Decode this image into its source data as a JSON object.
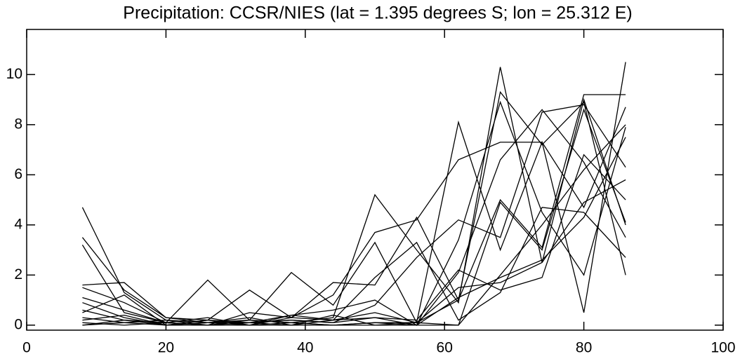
{
  "chart_data": {
    "type": "line",
    "title": "Precipitation: CCSR/NIES (lat = 1.395 degrees S; lon = 25.312 E)",
    "x": [
      8,
      14,
      20,
      26,
      32,
      38,
      44,
      50,
      56,
      62,
      68,
      74,
      80,
      86
    ],
    "xlim": [
      0,
      100
    ],
    "xticks": [
      0,
      20,
      40,
      60,
      80,
      100
    ],
    "ylim": [
      -0.2,
      11.8
    ],
    "yticks": [
      0,
      2,
      4,
      6,
      8,
      10
    ],
    "series": [
      {
        "color": "#000000",
        "values": [
          4.7,
          1.3,
          0.2,
          0,
          0.1,
          0,
          0.2,
          0.5,
          0.1,
          1.0,
          9.3,
          7.2,
          8.9,
          2.0
        ]
      },
      {
        "color": "#000000",
        "values": [
          3.5,
          1.4,
          0.3,
          0.1,
          0.2,
          0.1,
          0.3,
          5.2,
          3.0,
          0.9,
          10.3,
          2.5,
          9.0,
          4.0
        ]
      },
      {
        "color": "#000000",
        "values": [
          3.2,
          0.5,
          0.1,
          1.8,
          0.2,
          2.1,
          0.8,
          3.3,
          0.1,
          8.1,
          3.0,
          7.3,
          0.5,
          10.5
        ]
      },
      {
        "color": "#000000",
        "values": [
          1.6,
          1.7,
          0.3,
          0.2,
          1.4,
          0.3,
          1.7,
          1.6,
          4.3,
          1.0,
          5.0,
          3.1,
          9.2,
          9.2
        ]
      },
      {
        "color": "#000000",
        "values": [
          1.5,
          0.9,
          0.1,
          0,
          0.5,
          0.3,
          1.2,
          3.7,
          4.2,
          6.6,
          7.3,
          7.3,
          4.7,
          8.7
        ]
      },
      {
        "color": "#000000",
        "values": [
          1.1,
          0.6,
          0.1,
          0.3,
          0,
          0.4,
          0.6,
          1.0,
          0,
          3.4,
          8.9,
          4.5,
          2.0,
          7.9
        ]
      },
      {
        "color": "#000000",
        "values": [
          0.9,
          0.3,
          0,
          0.1,
          0.1,
          0.2,
          0.1,
          0.8,
          2.7,
          4.2,
          3.5,
          8.5,
          8.8,
          6.3
        ]
      },
      {
        "color": "#000000",
        "values": [
          0.6,
          0.2,
          0.1,
          0,
          0.2,
          0.1,
          0,
          0.1,
          0,
          2.1,
          6.6,
          8.6,
          6.5,
          3.5
        ]
      },
      {
        "color": "#000000",
        "values": [
          0.3,
          0.1,
          0,
          0.2,
          0,
          0,
          0.4,
          0,
          0.1,
          1.5,
          1.7,
          2.5,
          4.9,
          5.8
        ]
      },
      {
        "color": "#000000",
        "values": [
          0.1,
          0,
          0.1,
          0,
          0.1,
          0.2,
          0.1,
          0.3,
          0,
          1.1,
          1.9,
          2.6,
          4.3,
          7.5
        ]
      },
      {
        "color": "#000000",
        "values": [
          0,
          0.2,
          0,
          0.1,
          0.3,
          0,
          0,
          0.1,
          0.1,
          0,
          2.0,
          4.0,
          6.2,
          8.0
        ]
      },
      {
        "color": "#000000",
        "values": [
          0.2,
          0.4,
          0,
          0,
          0,
          0.3,
          0.2,
          1.9,
          3.3,
          0.2,
          1.3,
          4.7,
          4.5,
          2.7
        ]
      },
      {
        "color": "#000000",
        "values": [
          0,
          0.1,
          0.2,
          0.1,
          0,
          0.1,
          0,
          0,
          0,
          0,
          4.9,
          3.0,
          8.6,
          4.1
        ]
      },
      {
        "color": "#000000",
        "values": [
          0.5,
          1.2,
          0,
          0.2,
          0.1,
          0.4,
          0.2,
          0.3,
          0.2,
          2.2,
          1.4,
          1.9,
          6.8,
          5.0
        ]
      }
    ]
  }
}
